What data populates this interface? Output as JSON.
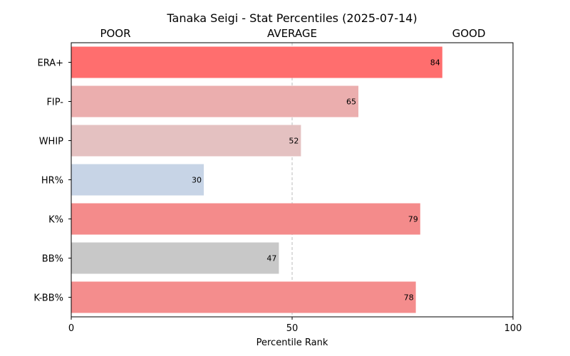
{
  "chart_data": {
    "type": "bar",
    "orientation": "horizontal",
    "title": "Tanaka Seigi - Stat Percentiles (2025-07-14)",
    "xlabel": "Percentile Rank",
    "ylabel": "",
    "xlim": [
      0,
      100
    ],
    "xticks": [
      "0",
      "50",
      "100"
    ],
    "zone_labels": [
      "POOR",
      "AVERAGE",
      "GOOD"
    ],
    "reference_line": 50,
    "grid": false,
    "categories": [
      "ERA+",
      "FIP-",
      "WHIP",
      "HR%",
      "K%",
      "BB%",
      "K-BB%"
    ],
    "values": [
      84,
      65,
      52,
      30,
      79,
      47,
      78
    ],
    "colors": [
      "#ff6e6e",
      "#ebaeae",
      "#e4c1c1",
      "#c7d4e6",
      "#f48b8b",
      "#c8c8c8",
      "#f48d8d"
    ]
  }
}
